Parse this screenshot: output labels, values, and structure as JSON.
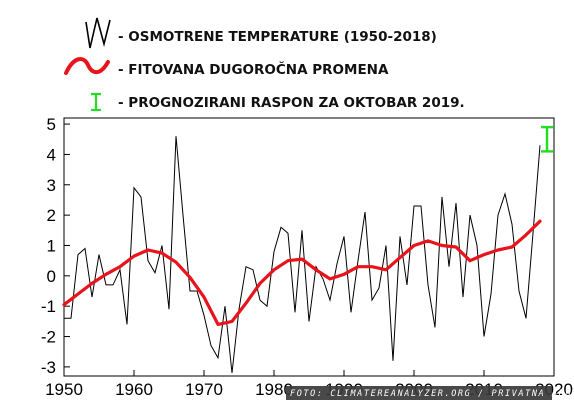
{
  "legend": {
    "observed_label": "- OSMOTRENE TEMPERATURE (1950-2018)",
    "fitted_label": "- FITOVANA DUGOROČNA PROMENA",
    "forecast_label": "- PROGNOZIRANI RASPON ZA OKTOBAR 2019."
  },
  "credit": "FOTO: CLIMATEREANALYZER.ORG / PRIVATNA ARHIVA",
  "colors": {
    "observed": "#000000",
    "fitted": "#e8131b",
    "forecast": "#22dd22"
  },
  "chart_data": {
    "type": "line",
    "title": "",
    "xlabel": "",
    "ylabel": "",
    "xlim": [
      1950,
      2020
    ],
    "ylim": [
      -3.3,
      5.2
    ],
    "xticks": [
      1950,
      1960,
      1970,
      1980,
      1990,
      2000,
      2010,
      2020
    ],
    "yticks": [
      -3,
      -2,
      -1,
      0,
      1,
      2,
      3,
      4,
      5
    ],
    "grid": false,
    "series": [
      {
        "name": "OSMOTRENE TEMPERATURE (1950-2018)",
        "x": [
          1950,
          1951,
          1952,
          1953,
          1954,
          1955,
          1956,
          1957,
          1958,
          1959,
          1960,
          1961,
          1962,
          1963,
          1964,
          1965,
          1966,
          1967,
          1968,
          1969,
          1970,
          1971,
          1972,
          1973,
          1974,
          1975,
          1976,
          1977,
          1978,
          1979,
          1980,
          1981,
          1982,
          1983,
          1984,
          1985,
          1986,
          1987,
          1988,
          1989,
          1990,
          1991,
          1992,
          1993,
          1994,
          1995,
          1996,
          1997,
          1998,
          1999,
          2000,
          2001,
          2002,
          2003,
          2004,
          2005,
          2006,
          2007,
          2008,
          2009,
          2010,
          2011,
          2012,
          2013,
          2014,
          2015,
          2016,
          2017,
          2018
        ],
        "y": [
          -1.4,
          -1.4,
          0.7,
          0.9,
          -0.7,
          0.7,
          -0.3,
          -0.3,
          0.2,
          -1.6,
          2.9,
          2.6,
          0.5,
          0.1,
          1.0,
          -1.1,
          4.6,
          2.0,
          -0.5,
          -0.5,
          -1.3,
          -2.3,
          -2.7,
          -1.0,
          -3.2,
          -1.1,
          0.3,
          0.2,
          -0.8,
          -1.0,
          0.8,
          1.6,
          1.4,
          -1.2,
          1.5,
          -1.5,
          0.3,
          -0.1,
          -0.8,
          0.4,
          1.3,
          -1.2,
          0.5,
          2.1,
          -0.8,
          -0.4,
          1.0,
          -2.8,
          1.3,
          -0.3,
          2.3,
          2.3,
          -0.3,
          -1.7,
          2.6,
          0.3,
          2.4,
          -0.7,
          2.0,
          1.0,
          -2.0,
          -0.6,
          2.0,
          2.7,
          1.7,
          -0.5,
          -1.4,
          1.4,
          4.3
        ]
      },
      {
        "name": "FITOVANA DUGOROČNA PROMENA",
        "x": [
          1950,
          1952,
          1954,
          1956,
          1958,
          1960,
          1962,
          1964,
          1966,
          1968,
          1970,
          1972,
          1974,
          1976,
          1978,
          1980,
          1982,
          1984,
          1986,
          1988,
          1990,
          1992,
          1994,
          1996,
          1998,
          2000,
          2002,
          2004,
          2006,
          2008,
          2010,
          2012,
          2014,
          2016,
          2018
        ],
        "y": [
          -0.95,
          -0.6,
          -0.25,
          0.05,
          0.3,
          0.65,
          0.85,
          0.75,
          0.45,
          -0.05,
          -0.7,
          -1.6,
          -1.5,
          -0.9,
          -0.25,
          0.2,
          0.5,
          0.55,
          0.2,
          -0.1,
          0.05,
          0.3,
          0.3,
          0.2,
          0.6,
          1.0,
          1.15,
          1.0,
          0.95,
          0.5,
          0.7,
          0.85,
          0.95,
          1.35,
          1.8
        ]
      }
    ],
    "forecast_range": {
      "name": "PROGNOZIRANI RASPON ZA OKTOBAR 2019.",
      "x": 2019,
      "low": 4.1,
      "high": 4.9
    }
  }
}
